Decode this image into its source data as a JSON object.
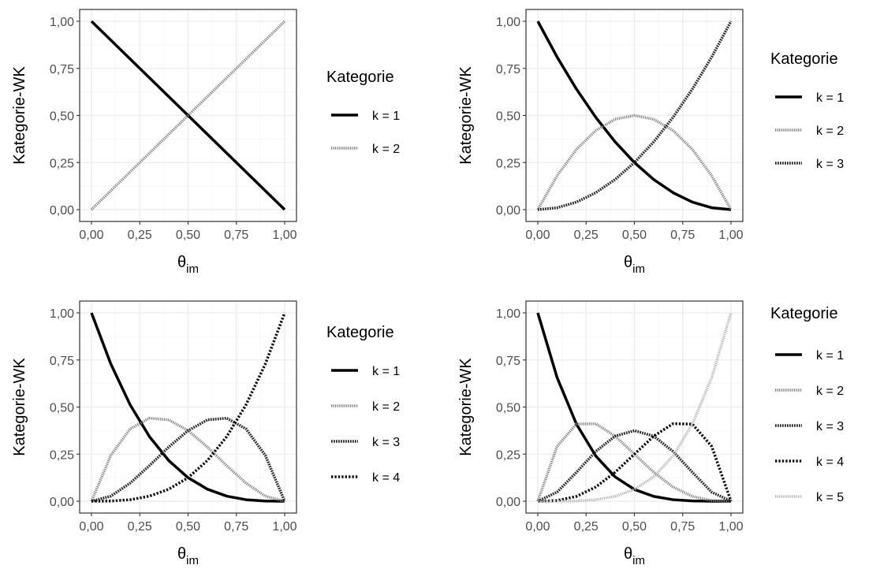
{
  "chart_data": [
    {
      "type": "line",
      "xlabel": "θ",
      "xlabel_sub": "im",
      "ylabel": "Kategorie-WK",
      "xlim": [
        0,
        1
      ],
      "ylim": [
        0,
        1
      ],
      "grid": true,
      "x_ticks": [
        "0,00",
        "0,25",
        "0,50",
        "0,75",
        "1,00"
      ],
      "y_ticks": [
        "0,00",
        "0,25",
        "0,50",
        "0,75",
        "1,00"
      ],
      "legend_title": "Kategorie",
      "legend_position": "right",
      "x": [
        0,
        0.25,
        0.5,
        0.75,
        1
      ],
      "series": [
        {
          "name": "k = 1",
          "values": [
            1,
            0.75,
            0.5,
            0.25,
            0
          ]
        },
        {
          "name": "k = 2",
          "values": [
            0,
            0.25,
            0.5,
            0.75,
            1
          ]
        }
      ]
    },
    {
      "type": "line",
      "xlabel": "θ",
      "xlabel_sub": "im",
      "ylabel": "Kategorie-WK",
      "xlim": [
        0,
        1
      ],
      "ylim": [
        0,
        1
      ],
      "grid": true,
      "x_ticks": [
        "0,00",
        "0,25",
        "0,50",
        "0,75",
        "1,00"
      ],
      "y_ticks": [
        "0,00",
        "0,25",
        "0,50",
        "0,75",
        "1,00"
      ],
      "legend_title": "Kategorie",
      "legend_position": "right",
      "x": [
        0,
        0.1,
        0.2,
        0.3,
        0.4,
        0.5,
        0.6,
        0.7,
        0.8,
        0.9,
        1
      ],
      "series": [
        {
          "name": "k = 1",
          "values": [
            1,
            0.81,
            0.64,
            0.49,
            0.36,
            0.25,
            0.16,
            0.09,
            0.04,
            0.01,
            0
          ]
        },
        {
          "name": "k = 2",
          "values": [
            0,
            0.18,
            0.32,
            0.42,
            0.48,
            0.5,
            0.48,
            0.42,
            0.32,
            0.18,
            0
          ]
        },
        {
          "name": "k = 3",
          "values": [
            0,
            0.01,
            0.04,
            0.09,
            0.16,
            0.25,
            0.36,
            0.49,
            0.64,
            0.81,
            1
          ]
        }
      ]
    },
    {
      "type": "line",
      "xlabel": "θ",
      "xlabel_sub": "im",
      "ylabel": "Kategorie-WK",
      "xlim": [
        0,
        1
      ],
      "ylim": [
        0,
        1
      ],
      "grid": true,
      "x_ticks": [
        "0,00",
        "0,25",
        "0,50",
        "0,75",
        "1,00"
      ],
      "y_ticks": [
        "0,00",
        "0,25",
        "0,50",
        "0,75",
        "1,00"
      ],
      "legend_title": "Kategorie",
      "legend_position": "right",
      "x": [
        0,
        0.1,
        0.2,
        0.3,
        0.4,
        0.5,
        0.6,
        0.7,
        0.8,
        0.9,
        1
      ],
      "series": [
        {
          "name": "k = 1",
          "values": [
            1,
            0.729,
            0.512,
            0.343,
            0.216,
            0.125,
            0.064,
            0.027,
            0.008,
            0.001,
            0
          ]
        },
        {
          "name": "k = 2",
          "values": [
            0,
            0.243,
            0.384,
            0.441,
            0.432,
            0.375,
            0.288,
            0.189,
            0.096,
            0.027,
            0
          ]
        },
        {
          "name": "k = 3",
          "values": [
            0,
            0.027,
            0.096,
            0.189,
            0.288,
            0.375,
            0.432,
            0.441,
            0.384,
            0.243,
            0
          ]
        },
        {
          "name": "k = 4",
          "values": [
            0,
            0.001,
            0.008,
            0.027,
            0.064,
            0.125,
            0.216,
            0.343,
            0.512,
            0.729,
            1
          ]
        }
      ]
    },
    {
      "type": "line",
      "xlabel": "θ",
      "xlabel_sub": "im",
      "ylabel": "Kategorie-WK",
      "xlim": [
        0,
        1
      ],
      "ylim": [
        0,
        1
      ],
      "grid": true,
      "x_ticks": [
        "0,00",
        "0,25",
        "0,50",
        "0,75",
        "1,00"
      ],
      "y_ticks": [
        "0,00",
        "0,25",
        "0,50",
        "0,75",
        "1,00"
      ],
      "legend_title": "Kategorie",
      "legend_position": "right",
      "x": [
        0,
        0.1,
        0.2,
        0.3,
        0.4,
        0.5,
        0.6,
        0.7,
        0.8,
        0.9,
        1
      ],
      "series": [
        {
          "name": "k = 1",
          "values": [
            1,
            0.6561,
            0.4096,
            0.2401,
            0.1296,
            0.0625,
            0.0256,
            0.0081,
            0.0016,
            0.0001,
            0
          ]
        },
        {
          "name": "k = 2",
          "values": [
            0,
            0.2916,
            0.4096,
            0.4116,
            0.3456,
            0.25,
            0.1536,
            0.0756,
            0.0256,
            0.0036,
            0
          ]
        },
        {
          "name": "k = 3",
          "values": [
            0,
            0.0486,
            0.1536,
            0.2646,
            0.3456,
            0.375,
            0.3456,
            0.2646,
            0.1536,
            0.0486,
            0
          ]
        },
        {
          "name": "k = 4",
          "values": [
            0,
            0.0036,
            0.0256,
            0.0756,
            0.1536,
            0.25,
            0.3456,
            0.4116,
            0.4096,
            0.2916,
            0
          ]
        },
        {
          "name": "k = 5",
          "values": [
            0,
            0.0001,
            0.0016,
            0.0081,
            0.0256,
            0.0625,
            0.1296,
            0.2401,
            0.4096,
            0.6561,
            1
          ]
        }
      ]
    }
  ],
  "colors": {
    "panel_border": "#333333",
    "grid_major": "#ebebeb",
    "grid_minor": "#f5f5f5",
    "tick_label": "#4d4d4d",
    "k1": "#000000",
    "k2": "#7f7f7f",
    "k3": "#2b2b2b",
    "k4": "#111111",
    "k5": "#b3b3b3"
  }
}
